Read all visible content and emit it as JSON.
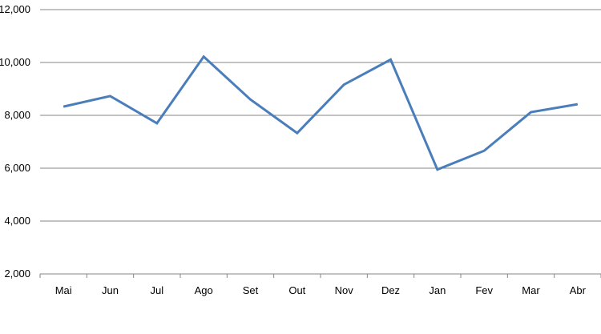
{
  "chart_data": {
    "type": "line",
    "categories": [
      "Mai",
      "Jun",
      "Jul",
      "Ago",
      "Set",
      "Out",
      "Nov",
      "Dez",
      "Jan",
      "Fev",
      "Mar",
      "Abr"
    ],
    "series": [
      {
        "values": [
          8330,
          8730,
          7700,
          10220,
          8600,
          7330,
          9160,
          10110,
          5950,
          6660,
          8120,
          8420
        ],
        "color": "#4a7ebb"
      }
    ],
    "ylim": [
      2000,
      12000
    ],
    "yticks": [
      2000,
      4000,
      6000,
      8000,
      10000,
      12000
    ],
    "ytick_labels": [
      "2,000",
      "4,000",
      "6,000",
      "8,000",
      "10,000",
      "12,000"
    ],
    "grid": true,
    "gridline_color": "#868686",
    "title": "",
    "xlabel": "",
    "ylabel": ""
  }
}
